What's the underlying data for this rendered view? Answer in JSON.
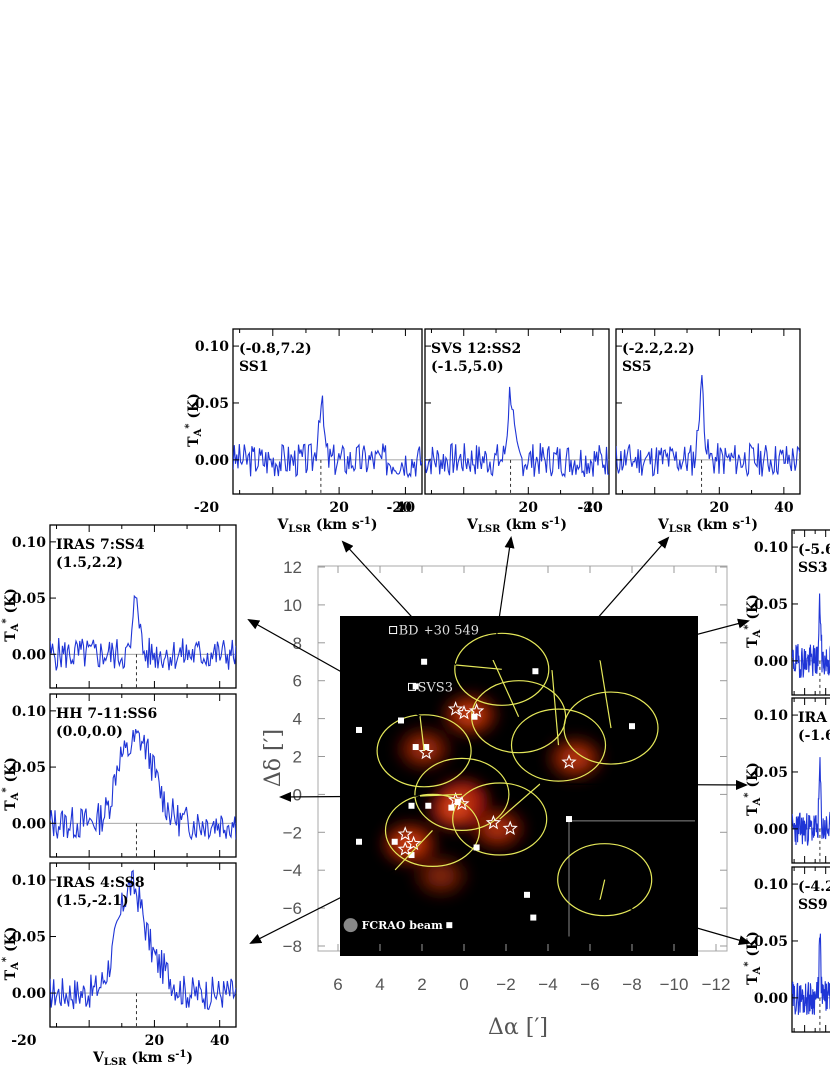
{
  "figure": {
    "map": {
      "xlabel": "Δα [′]",
      "ylabel": "Δδ [′]",
      "xlim": [
        6,
        -12
      ],
      "ylim": [
        -9,
        12.5
      ],
      "xticks": [
        "6",
        "4",
        "2",
        "0",
        "−2",
        "−4",
        "−6",
        "−8",
        "−10",
        "−12"
      ],
      "xtick_values": [
        6,
        4,
        2,
        0,
        -2,
        -4,
        -6,
        -8,
        -10,
        -12
      ],
      "yticks": [
        "12",
        "10",
        "8",
        "6",
        "4",
        "2",
        "0",
        "−2",
        "−4",
        "−6",
        "−8"
      ],
      "ytick_values": [
        12,
        10,
        8,
        6,
        4,
        2,
        0,
        -2,
        -4,
        -6,
        -8
      ],
      "image_extent": {
        "x": [
          5.8,
          -10.9
        ],
        "y": [
          -7.5,
          9.5
        ]
      },
      "labels": [
        {
          "text": "BD +30 549",
          "x": 3.4,
          "y": 8.7
        },
        {
          "text": "SVS3",
          "x": 2.5,
          "y": 5.7
        }
      ],
      "beam_label": "FCRAO beam",
      "beam_center": {
        "x": 5.4,
        "y": -6.9
      },
      "squares": [
        [
          5,
          3.4
        ],
        [
          3,
          3.9
        ],
        [
          1.9,
          7
        ],
        [
          2.3,
          5.7
        ],
        [
          -0.5,
          4.1
        ],
        [
          -3.4,
          6.5
        ],
        [
          -8,
          3.6
        ],
        [
          2.3,
          2.5
        ],
        [
          1.8,
          2.5
        ],
        [
          2.5,
          -0.6
        ],
        [
          1.7,
          -0.6
        ],
        [
          0.6,
          -0.7
        ],
        [
          0.3,
          -0.4
        ],
        [
          5,
          -2.5
        ],
        [
          3.3,
          -2.5
        ],
        [
          2.5,
          -3.2
        ],
        [
          -0.6,
          -2.8
        ],
        [
          -5,
          -1.3
        ],
        [
          -3,
          -5.3
        ],
        [
          -3.3,
          -6.5
        ],
        [
          0.7,
          -6.9
        ]
      ],
      "stars": [
        [
          0.4,
          4.5
        ],
        [
          0,
          4.3
        ],
        [
          -0.6,
          4.4
        ],
        [
          1.8,
          2.2
        ],
        [
          0.4,
          -0.3
        ],
        [
          0.1,
          -0.5
        ],
        [
          -1.4,
          -1.5
        ],
        [
          -2.2,
          -1.8
        ],
        [
          2.8,
          -2.1
        ],
        [
          2.4,
          -2.6
        ],
        [
          2.8,
          -2.9
        ],
        [
          -5,
          1.7
        ]
      ],
      "ellipses": [
        {
          "x": -1.8,
          "y": 6.6
        },
        {
          "x": -2.6,
          "y": 4.1
        },
        {
          "x": -4.5,
          "y": 2.6
        },
        {
          "x": -7,
          "y": 3.5
        },
        {
          "x": 1.9,
          "y": 2.3
        },
        {
          "x": 0.1,
          "y": 0
        },
        {
          "x": -1.7,
          "y": -1.3
        },
        {
          "x": 1.5,
          "y": -1.9
        },
        {
          "x": -6.7,
          "y": -4.5
        }
      ],
      "emission": [
        {
          "x": 0.1,
          "y": -0.3,
          "a": 1.0
        },
        {
          "x": 0.4,
          "y": -0.8,
          "a": 0.85
        },
        {
          "x": 2.6,
          "y": -2.6,
          "a": 0.8
        },
        {
          "x": -0.3,
          "y": 4.2,
          "a": 0.75
        },
        {
          "x": 1.9,
          "y": 2.4,
          "a": 0.55
        },
        {
          "x": -5.3,
          "y": 1.9,
          "a": 0.65
        },
        {
          "x": -1.6,
          "y": -1.8,
          "a": 0.6
        },
        {
          "x": 1.1,
          "y": -4.3,
          "a": 0.4
        }
      ]
    },
    "panels": [
      {
        "id": "SS1",
        "label1": "(-0.8,7.2)",
        "label2": "SS1",
        "peak": 0.05,
        "mode": "peak",
        "seed": 3
      },
      {
        "id": "SS2",
        "label1": "SVS 12:SS2",
        "label2": "(-1.5,5.0)",
        "peak": 0.06,
        "mode": "peak",
        "seed": 7
      },
      {
        "id": "SS5",
        "label1": "(-2.2,2.2)",
        "label2": "SS5",
        "peak": 0.065,
        "mode": "peak",
        "seed": 11
      },
      {
        "id": "SS4",
        "label1": "IRAS 7:SS4",
        "label2": "(1.5,2.2)",
        "peak": 0.057,
        "mode": "peak",
        "seed": 5
      },
      {
        "id": "SS6",
        "label1": "HH 7-11:SS6",
        "label2": "(0.0,0.0)",
        "peak": 0.075,
        "mode": "broad",
        "seed": 13
      },
      {
        "id": "SS8",
        "label1": "IRAS 4:SS8",
        "label2": "(1.5,-2.1)",
        "peak": 0.095,
        "mode": "broad2",
        "seed": 17
      },
      {
        "id": "SS3",
        "label1": "(-5.6",
        "label2": "SS3",
        "peak": 0.05,
        "mode": "peak",
        "seed": 19
      },
      {
        "id": "SS7",
        "label1": "IRA",
        "label2": "(-1.6",
        "peak": 0.05,
        "mode": "peak",
        "seed": 23
      },
      {
        "id": "SS9",
        "label1": "(-4.2",
        "label2": "SS9",
        "peak": 0.05,
        "mode": "peak",
        "seed": 29
      }
    ],
    "spectrum_axes": {
      "ylabel": "T",
      "ylabel_sub": "A",
      "ylabel_sup": "*",
      "ylabel_unit": "(K)",
      "xlabel": "V",
      "xlabel_sub": "LSR",
      "xlabel_unit": "(km s",
      "xlabel_sup": "-1",
      "xlabel_close": ")",
      "xlim": [
        -12,
        45
      ],
      "ylim": [
        -0.03,
        0.115
      ],
      "yticks": [
        "0.00",
        "0.05",
        "0.10"
      ],
      "ytick_values": [
        0,
        0.05,
        0.1
      ],
      "xticks": [
        "-20",
        "20",
        "40"
      ],
      "xtick_values": [
        -20,
        20,
        40
      ],
      "vsys": 14.5
    }
  }
}
